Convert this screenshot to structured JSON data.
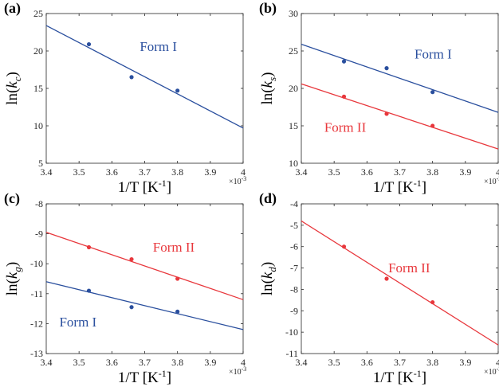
{
  "colors": {
    "form_i": "#2a4f9e",
    "form_ii": "#e8373c"
  },
  "chart_data": [
    {
      "type": "scatter",
      "panel_label": "(a)",
      "xlabel": "1/T [K",
      "xlabel_sup": "-1",
      "xlabel_end": "]",
      "x_multiplier": "×10",
      "x_multiplier_sup": "-3",
      "ylabel": "ln(",
      "ylabel_k": "k",
      "ylabel_sub": "c",
      "ylabel_end": ")",
      "xlim": [
        3.4,
        4.0
      ],
      "ylim": [
        5,
        25
      ],
      "xticks": [
        "3.4",
        "3.5",
        "3.6",
        "3.7",
        "3.8",
        "3.9",
        "4"
      ],
      "yticks": [
        "5",
        "10",
        "15",
        "20",
        "25"
      ],
      "series": [
        {
          "name": "Form I",
          "color_key": "form_i",
          "points": [
            [
              3.53,
              20.9
            ],
            [
              3.66,
              16.5
            ],
            [
              3.8,
              14.7
            ]
          ],
          "fit": [
            [
              3.4,
              23.4
            ],
            [
              4.0,
              9.7
            ]
          ],
          "label_at": [
            3.685,
            20.0
          ]
        }
      ]
    },
    {
      "type": "scatter",
      "panel_label": "(b)",
      "xlabel": "1/T [K",
      "xlabel_sup": "-1",
      "xlabel_end": "]",
      "x_multiplier": "×10",
      "x_multiplier_sup": "-3",
      "ylabel": "ln(",
      "ylabel_k": "k",
      "ylabel_sub": "s",
      "ylabel_end": ")",
      "xlim": [
        3.4,
        4.0
      ],
      "ylim": [
        10,
        30
      ],
      "xticks": [
        "3.4",
        "3.5",
        "3.6",
        "3.7",
        "3.8",
        "3.9",
        "4"
      ],
      "yticks": [
        "10",
        "15",
        "20",
        "25",
        "30"
      ],
      "series": [
        {
          "name": "Form I",
          "color_key": "form_i",
          "points": [
            [
              3.53,
              23.6
            ],
            [
              3.66,
              22.7
            ],
            [
              3.8,
              19.5
            ]
          ],
          "fit": [
            [
              3.4,
              25.9
            ],
            [
              4.0,
              16.8
            ]
          ],
          "label_at": [
            3.745,
            24.0
          ]
        },
        {
          "name": "Form II",
          "color_key": "form_ii",
          "points": [
            [
              3.53,
              18.9
            ],
            [
              3.66,
              16.6
            ],
            [
              3.8,
              15.0
            ]
          ],
          "fit": [
            [
              3.4,
              20.6
            ],
            [
              4.0,
              11.9
            ]
          ],
          "label_at": [
            3.47,
            14.2
          ]
        }
      ]
    },
    {
      "type": "scatter",
      "panel_label": "(c)",
      "xlabel": "1/T [K",
      "xlabel_sup": "-1",
      "xlabel_end": "]",
      "x_multiplier": "×10",
      "x_multiplier_sup": "-3",
      "ylabel": "ln(",
      "ylabel_k": "k",
      "ylabel_sub": "g",
      "ylabel_end": ")",
      "xlim": [
        3.4,
        4.0
      ],
      "ylim": [
        -13,
        -8
      ],
      "xticks": [
        "3.4",
        "3.5",
        "3.6",
        "3.7",
        "3.8",
        "3.9",
        "4"
      ],
      "yticks": [
        "-13",
        "-12",
        "-11",
        "-10",
        "-9",
        "-8"
      ],
      "series": [
        {
          "name": "Form II",
          "color_key": "form_ii",
          "points": [
            [
              3.53,
              -9.45
            ],
            [
              3.66,
              -9.85
            ],
            [
              3.8,
              -10.5
            ]
          ],
          "fit": [
            [
              3.4,
              -8.95
            ],
            [
              4.0,
              -11.2
            ]
          ],
          "label_at": [
            3.725,
            -9.6
          ]
        },
        {
          "name": "Form I",
          "color_key": "form_i",
          "points": [
            [
              3.53,
              -10.9
            ],
            [
              3.66,
              -11.45
            ],
            [
              3.8,
              -11.6
            ]
          ],
          "fit": [
            [
              3.4,
              -10.6
            ],
            [
              4.0,
              -12.2
            ]
          ],
          "label_at": [
            3.44,
            -12.1
          ]
        }
      ]
    },
    {
      "type": "scatter",
      "panel_label": "(d)",
      "xlabel": "1/T [K",
      "xlabel_sup": "-1",
      "xlabel_end": "]",
      "x_multiplier": "×10",
      "x_multiplier_sup": "-3",
      "ylabel": "ln(",
      "ylabel_k": "k",
      "ylabel_sub": "d",
      "ylabel_end": ")",
      "xlim": [
        3.4,
        4.0
      ],
      "ylim": [
        -11,
        -4
      ],
      "xticks": [
        "3.4",
        "3.5",
        "3.6",
        "3.7",
        "3.8",
        "3.9",
        "4"
      ],
      "yticks": [
        "-11",
        "-10",
        "-9",
        "-8",
        "-7",
        "-6",
        "-5",
        "-4"
      ],
      "series": [
        {
          "name": "Form II",
          "color_key": "form_ii",
          "points": [
            [
              3.53,
              -6.0
            ],
            [
              3.66,
              -7.5
            ],
            [
              3.8,
              -8.6
            ]
          ],
          "fit": [
            [
              3.4,
              -4.8
            ],
            [
              4.0,
              -10.6
            ]
          ],
          "label_at": [
            3.665,
            -7.2
          ]
        }
      ]
    }
  ]
}
